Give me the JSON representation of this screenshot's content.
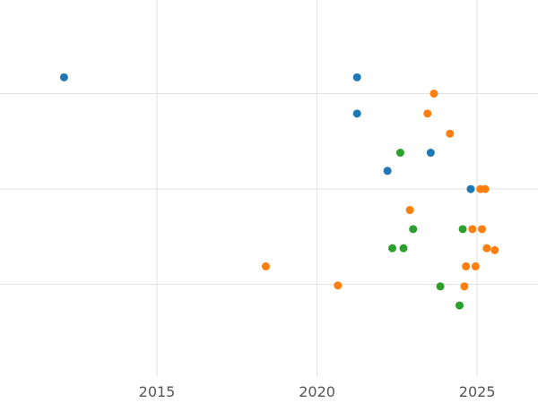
{
  "chart_data": {
    "type": "scatter",
    "title": "",
    "xlabel": "",
    "ylabel": "",
    "grid": true,
    "legend": false,
    "x_tick_labels": [
      "2015",
      "2020",
      "2025"
    ],
    "x_tick_values": [
      2015,
      2020,
      2025
    ],
    "y_gridline_values": [
      1,
      2,
      3
    ],
    "xlim": [
      2010.1,
      2026.9
    ],
    "ylim": [
      0.04,
      3.98
    ],
    "marker_radius": 4.5,
    "series": [
      {
        "name": "series-blue",
        "color": "#1f77b4",
        "points": [
          [
            2012.1,
            3.17
          ],
          [
            2021.25,
            3.17
          ],
          [
            2021.25,
            2.79
          ],
          [
            2023.55,
            2.38
          ],
          [
            2022.2,
            2.19
          ],
          [
            2024.8,
            2.0
          ]
        ]
      },
      {
        "name": "series-orange",
        "color": "#ff7f0e",
        "points": [
          [
            2023.65,
            3.0
          ],
          [
            2023.45,
            2.79
          ],
          [
            2024.15,
            2.58
          ],
          [
            2025.1,
            2.0
          ],
          [
            2025.25,
            2.0
          ],
          [
            2022.9,
            1.78
          ],
          [
            2024.85,
            1.58
          ],
          [
            2025.15,
            1.58
          ],
          [
            2025.3,
            1.38
          ],
          [
            2025.55,
            1.36
          ],
          [
            2018.4,
            1.19
          ],
          [
            2024.65,
            1.19
          ],
          [
            2024.95,
            1.19
          ],
          [
            2020.65,
            0.99
          ],
          [
            2024.6,
            0.98
          ]
        ]
      },
      {
        "name": "series-green",
        "color": "#2ca02c",
        "points": [
          [
            2022.6,
            2.38
          ],
          [
            2023.0,
            1.58
          ],
          [
            2024.55,
            1.58
          ],
          [
            2022.35,
            1.38
          ],
          [
            2022.7,
            1.38
          ],
          [
            2023.85,
            0.98
          ],
          [
            2024.45,
            0.78
          ]
        ]
      }
    ]
  }
}
